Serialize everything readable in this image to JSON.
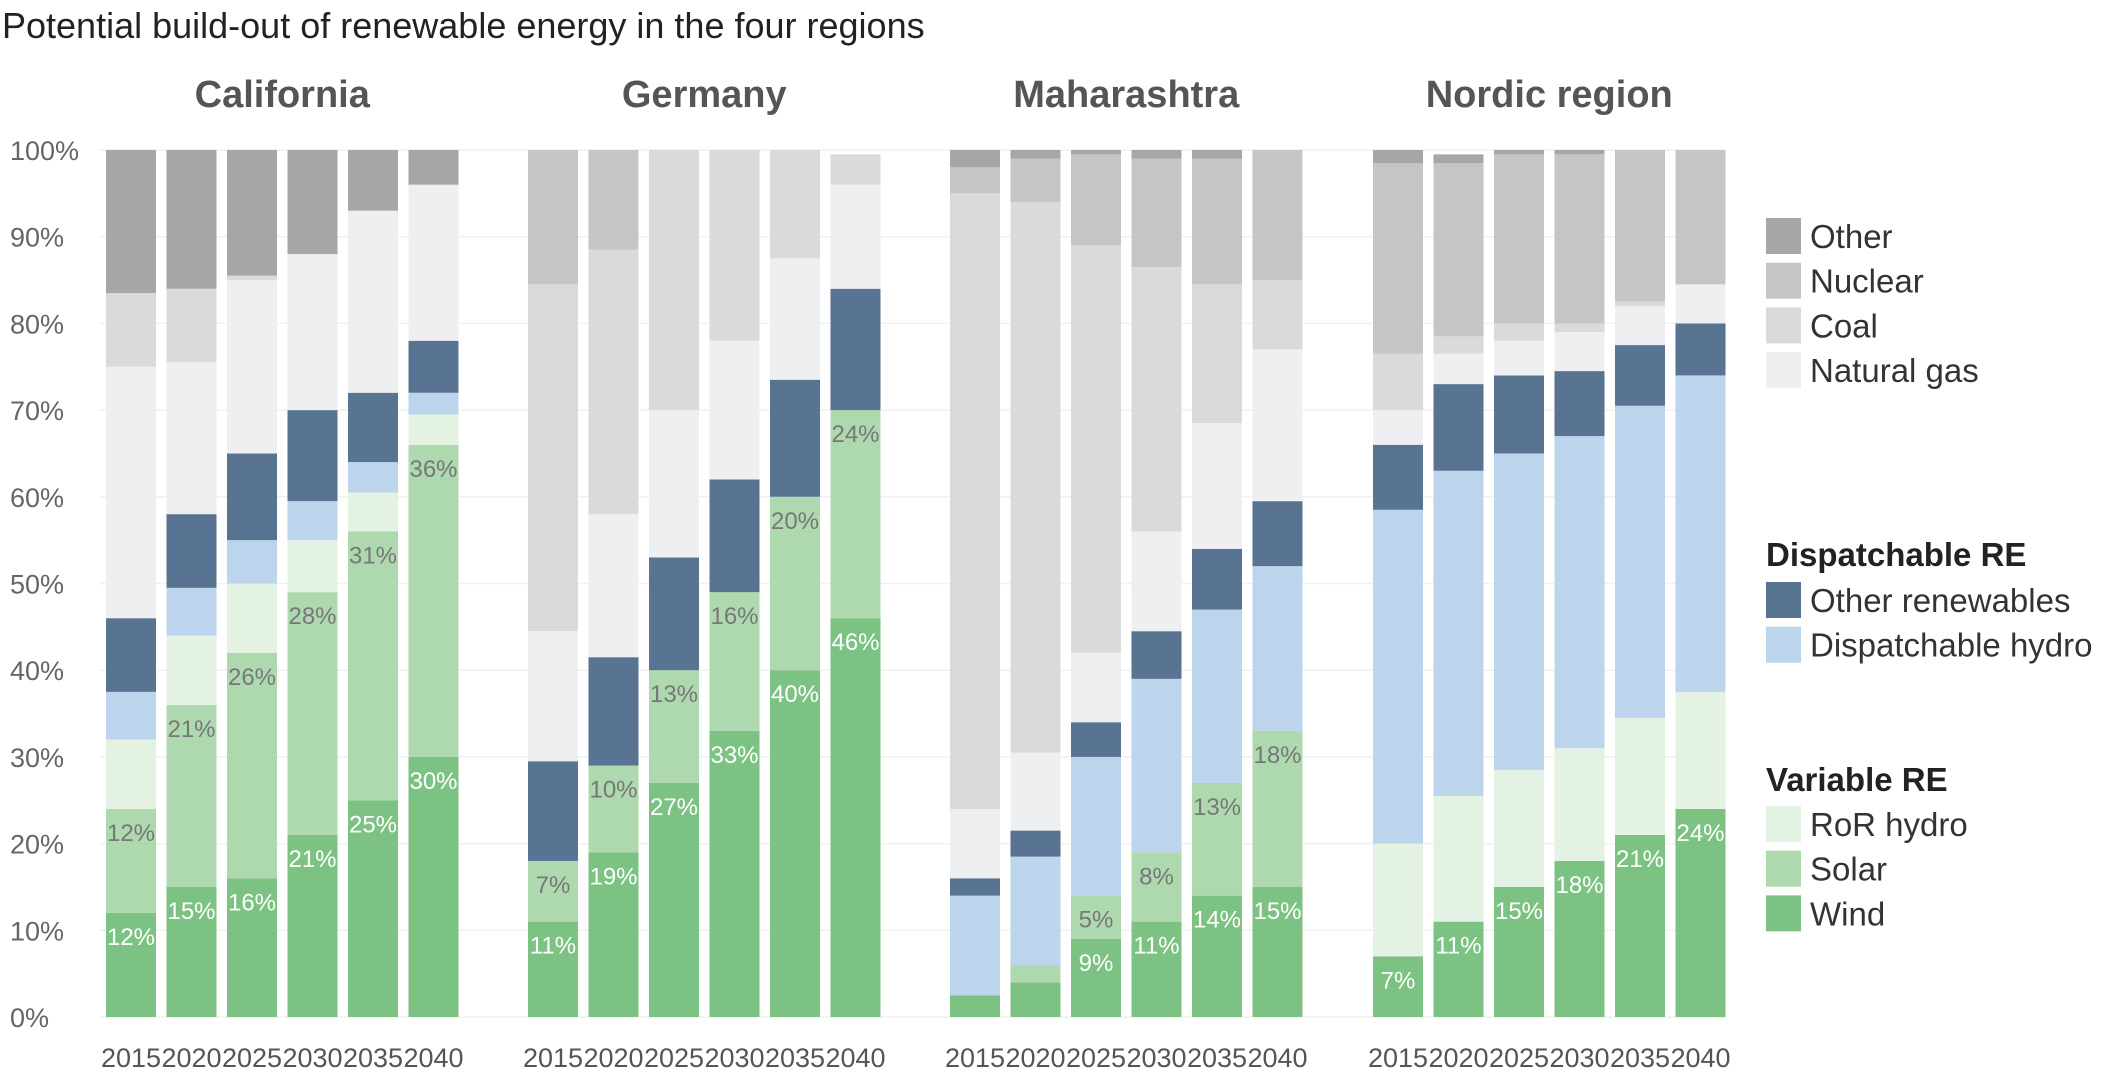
{
  "chart_data": {
    "type": "bar",
    "stacked": true,
    "title": "Potential build-out of renewable energy in the four regions",
    "ylim": [
      0,
      100
    ],
    "yticks": [
      "0%",
      "10%",
      "20%",
      "30%",
      "40%",
      "50%",
      "60%",
      "70%",
      "80%",
      "90%",
      "100%"
    ],
    "grid": true,
    "categories": [
      "2015",
      "2020",
      "2025",
      "2030",
      "2035",
      "2040"
    ],
    "stack_order": [
      "Wind",
      "Solar",
      "RoR hydro",
      "Dispatchable hydro",
      "Other renewables",
      "Natural gas",
      "Coal",
      "Nuclear",
      "Other"
    ],
    "colors": {
      "Wind": "#7cc283",
      "Solar": "#aed9ae",
      "RoR hydro": "#e3f2e2",
      "Dispatchable hydro": "#bcd4ec",
      "Other renewables": "#587492",
      "Natural gas": "#eeeff0",
      "Coal": "#dadada",
      "Nuclear": "#c5c5c7",
      "Other": "#a5a6a7"
    },
    "legend": {
      "placement": "right",
      "groups": [
        {
          "heading": "",
          "items": [
            "Other",
            "Nuclear",
            "Coal",
            "Natural gas"
          ]
        },
        {
          "heading": "Dispatchable RE",
          "items": [
            "Other renewables",
            "Dispatchable hydro"
          ]
        },
        {
          "heading": "Variable RE",
          "items": [
            "RoR hydro",
            "Solar",
            "Wind"
          ]
        }
      ]
    },
    "regions": [
      {
        "name": "California",
        "series": {
          "Wind": [
            12,
            15,
            16,
            21,
            25,
            30
          ],
          "Solar": [
            12,
            21,
            26,
            28,
            31,
            36
          ],
          "RoR hydro": [
            8,
            8,
            8,
            6,
            4.5,
            3.5
          ],
          "Dispatchable hydro": [
            5.5,
            5.5,
            5,
            4.5,
            3.5,
            2.5
          ],
          "Other renewables": [
            8.5,
            8.5,
            10,
            10.5,
            8,
            6
          ],
          "Natural gas": [
            29,
            17.5,
            20,
            18,
            21,
            18
          ],
          "Coal": [
            8.5,
            8.5,
            0.5,
            0,
            0,
            0
          ],
          "Nuclear": [
            0,
            0,
            0,
            0,
            0,
            0
          ],
          "Other": [
            16.5,
            16,
            14.5,
            12,
            7,
            4
          ]
        },
        "labels": {
          "Wind": [
            "12%",
            "15%",
            "16%",
            "21%",
            "25%",
            "30%"
          ],
          "Solar": [
            "12%",
            "21%",
            "26%",
            "28%",
            "31%",
            "36%"
          ]
        }
      },
      {
        "name": "Germany",
        "series": {
          "Wind": [
            11,
            19,
            27,
            33,
            40,
            46
          ],
          "Solar": [
            7,
            10,
            13,
            16,
            20,
            24
          ],
          "RoR hydro": [
            0,
            0,
            0,
            0,
            0,
            0
          ],
          "Dispatchable hydro": [
            0,
            0,
            0,
            0,
            0,
            0
          ],
          "Other renewables": [
            11.5,
            12.5,
            13,
            13,
            13.5,
            14
          ],
          "Natural gas": [
            15,
            16.5,
            17,
            16,
            14,
            12
          ],
          "Coal": [
            40,
            30.5,
            30,
            22,
            12.5,
            3.5
          ],
          "Nuclear": [
            15.5,
            11.5,
            0,
            0,
            0,
            0
          ],
          "Other": [
            0,
            0,
            0,
            0,
            0,
            0
          ]
        },
        "labels": {
          "Wind": [
            "11%",
            "19%",
            "27%",
            "33%",
            "40%",
            "46%"
          ],
          "Solar": [
            "7%",
            "10%",
            "13%",
            "16%",
            "20%",
            "24%"
          ]
        }
      },
      {
        "name": "Maharashtra",
        "series": {
          "Wind": [
            2.5,
            4,
            9,
            11,
            14,
            15
          ],
          "Solar": [
            0,
            2,
            5,
            8,
            13,
            18
          ],
          "RoR hydro": [
            0,
            0,
            0,
            0,
            0,
            0
          ],
          "Dispatchable hydro": [
            11.5,
            12.5,
            16,
            20,
            20,
            19
          ],
          "Other renewables": [
            2,
            3,
            4,
            5.5,
            7,
            7.5
          ],
          "Natural gas": [
            8,
            9,
            8,
            11.5,
            14.5,
            17.5
          ],
          "Coal": [
            71,
            63.5,
            47,
            30.5,
            16,
            8
          ],
          "Nuclear": [
            3,
            5,
            10.5,
            12.5,
            14.5,
            15
          ],
          "Other": [
            2,
            1,
            0.5,
            1,
            1,
            0
          ]
        },
        "labels": {
          "Wind": [
            "",
            "",
            "9%",
            "11%",
            "14%",
            "15%"
          ],
          "Solar": [
            "",
            "",
            "5%",
            "8%",
            "13%",
            "18%"
          ]
        }
      },
      {
        "name": "Nordic region",
        "series": {
          "Wind": [
            7,
            11,
            15,
            18,
            21,
            24
          ],
          "Solar": [
            0,
            0,
            0,
            0,
            0,
            0
          ],
          "RoR hydro": [
            13,
            14.5,
            13.5,
            13,
            13.5,
            13.5
          ],
          "Dispatchable hydro": [
            38.5,
            37.5,
            36.5,
            36,
            36,
            36.5
          ],
          "Other renewables": [
            7.5,
            10,
            9,
            7.5,
            7,
            6
          ],
          "Natural gas": [
            4,
            3.5,
            4,
            4.5,
            4.5,
            4.5
          ],
          "Coal": [
            6.5,
            2,
            2,
            1,
            0.5,
            0
          ],
          "Nuclear": [
            22,
            20,
            19.5,
            19.5,
            17.5,
            15.5
          ],
          "Other": [
            1.5,
            1,
            0.5,
            0.5,
            0,
            0
          ]
        },
        "labels": {
          "Wind": [
            "7%",
            "11%",
            "15%",
            "18%",
            "21%",
            "24%"
          ],
          "Solar": [
            "",
            "",
            "",
            "",
            "",
            ""
          ]
        }
      }
    ]
  }
}
